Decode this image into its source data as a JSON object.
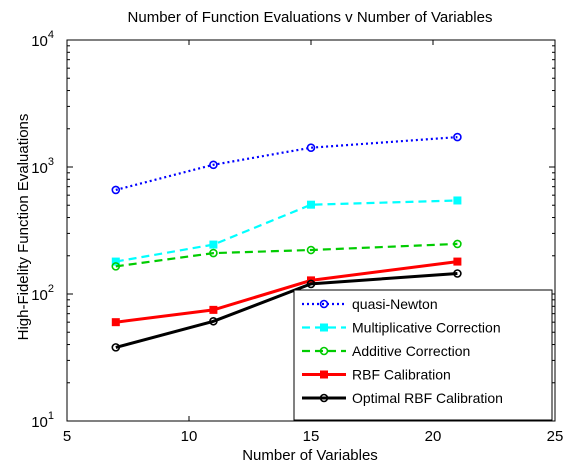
{
  "chart_data": {
    "type": "line",
    "title": "Number of Function Evaluations v Number of Variables",
    "xlabel": "Number of Variables",
    "ylabel": "High-Fidelity Function Evaluations",
    "xlim": [
      5,
      25
    ],
    "ylim": [
      10,
      10000
    ],
    "yscale": "log",
    "xticks": [
      "5",
      "10",
      "15",
      "20",
      "25"
    ],
    "yticks": [
      {
        "base": "10",
        "exp": "1"
      },
      {
        "base": "10",
        "exp": "2"
      },
      {
        "base": "10",
        "exp": "3"
      },
      {
        "base": "10",
        "exp": "4"
      }
    ],
    "grid": false,
    "legend_position": "bottom-right",
    "x": [
      7,
      11,
      15,
      21
    ],
    "series": [
      {
        "name": "quasi-Newton",
        "values": [
          660,
          1040,
          1420,
          1720
        ],
        "color": "#0000ff",
        "linestyle": "dotted",
        "marker": "circle"
      },
      {
        "name": "Multiplicative Correction",
        "values": [
          180,
          245,
          505,
          545
        ],
        "color": "#00ffff",
        "linestyle": "dashed",
        "marker": "square"
      },
      {
        "name": "Additive Correction",
        "values": [
          165,
          210,
          222,
          248
        ],
        "color": "#00cc00",
        "linestyle": "dashed",
        "marker": "circle"
      },
      {
        "name": "RBF Calibration",
        "values": [
          60,
          75,
          128,
          180
        ],
        "color": "#ff0000",
        "linestyle": "solid",
        "marker": "square"
      },
      {
        "name": "Optimal RBF Calibration",
        "values": [
          38,
          61,
          120,
          145
        ],
        "color": "#000000",
        "linestyle": "solid",
        "marker": "circle"
      }
    ]
  }
}
